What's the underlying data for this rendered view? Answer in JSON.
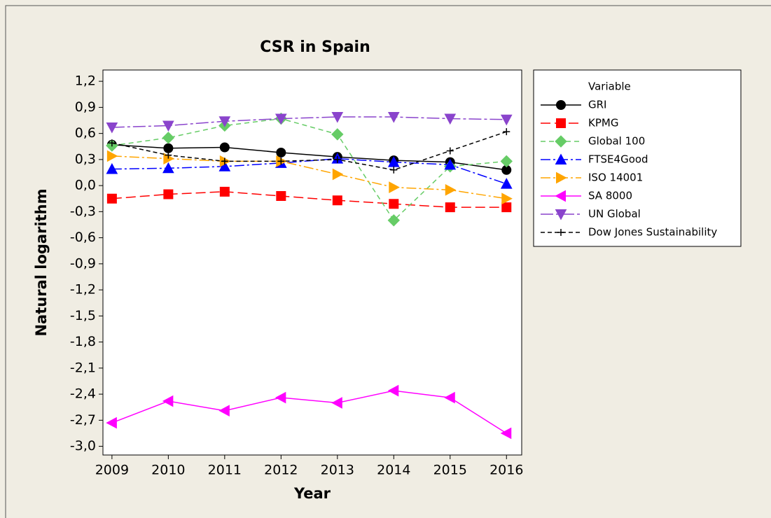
{
  "chart_data": {
    "type": "line",
    "title": "CSR in Spain",
    "x_label": "Year",
    "y_label": "Natural logarithm",
    "legend_title": "Variable",
    "x": [
      2009,
      2010,
      2011,
      2012,
      2013,
      2014,
      2015,
      2016
    ],
    "xlim": [
      2008.84,
      2016.27
    ],
    "xticks": [
      2009,
      2010,
      2011,
      2012,
      2013,
      2014,
      2015,
      2016
    ],
    "ylim": [
      -3.1,
      1.33
    ],
    "yticks": [
      {
        "value": 1.2,
        "label": "1,2"
      },
      {
        "value": 0.9,
        "label": "0,9"
      },
      {
        "value": 0.6,
        "label": "0,6"
      },
      {
        "value": 0.3,
        "label": "0,3"
      },
      {
        "value": 0.0,
        "label": "0,0"
      },
      {
        "value": -0.3,
        "label": "-0,3"
      },
      {
        "value": -0.6,
        "label": "-0,6"
      },
      {
        "value": -0.9,
        "label": "-0,9"
      },
      {
        "value": -1.2,
        "label": "-1,2"
      },
      {
        "value": -1.5,
        "label": "-1,5"
      },
      {
        "value": -1.8,
        "label": "-1,8"
      },
      {
        "value": -2.1,
        "label": "-2,1"
      },
      {
        "value": -2.4,
        "label": "-2,4"
      },
      {
        "value": -2.7,
        "label": "-2,7"
      },
      {
        "value": -3.0,
        "label": "-3,0"
      }
    ],
    "legend": "right",
    "series": [
      {
        "name": "GRI",
        "color": "#000000",
        "marker": "circle",
        "dash": "none",
        "values": [
          0.47,
          0.43,
          0.44,
          0.38,
          0.33,
          0.29,
          0.27,
          0.18
        ]
      },
      {
        "name": "KPMG",
        "color": "#ff0000",
        "marker": "square",
        "dash": "14 6",
        "values": [
          -0.15,
          -0.1,
          -0.07,
          -0.12,
          -0.17,
          -0.21,
          -0.25,
          -0.25
        ]
      },
      {
        "name": "Global 100",
        "color": "#66cc66",
        "marker": "diamond",
        "dash": "7 5",
        "values": [
          0.46,
          0.55,
          0.69,
          0.77,
          0.59,
          -0.4,
          0.22,
          0.28
        ]
      },
      {
        "name": "FTSE4Good",
        "color": "#0000ff",
        "marker": "triangle-up",
        "dash": "14 4 3 4",
        "values": [
          0.19,
          0.2,
          0.22,
          0.26,
          0.31,
          0.27,
          0.24,
          0.02
        ]
      },
      {
        "name": "ISO 14001",
        "color": "#ffa500",
        "marker": "triangle-right",
        "dash": "14 4 3 4",
        "values": [
          0.34,
          0.31,
          0.28,
          0.28,
          0.13,
          -0.02,
          -0.05,
          -0.15
        ]
      },
      {
        "name": "SA 8000",
        "color": "#ff00ff",
        "marker": "triangle-left",
        "dash": "none",
        "values": [
          -2.73,
          -2.48,
          -2.59,
          -2.44,
          -2.5,
          -2.36,
          -2.44,
          -2.85
        ]
      },
      {
        "name": "UN Global",
        "color": "#8a44cc",
        "marker": "triangle-down",
        "dash": "18 4 4 4",
        "values": [
          0.67,
          0.69,
          0.74,
          0.77,
          0.79,
          0.79,
          0.77,
          0.76
        ]
      },
      {
        "name": "Dow Jones Sustainability",
        "color": "#000000",
        "marker": "plus",
        "dash": "6 4",
        "values": [
          0.49,
          0.35,
          0.28,
          0.28,
          0.3,
          0.18,
          0.4,
          0.62
        ]
      }
    ]
  }
}
